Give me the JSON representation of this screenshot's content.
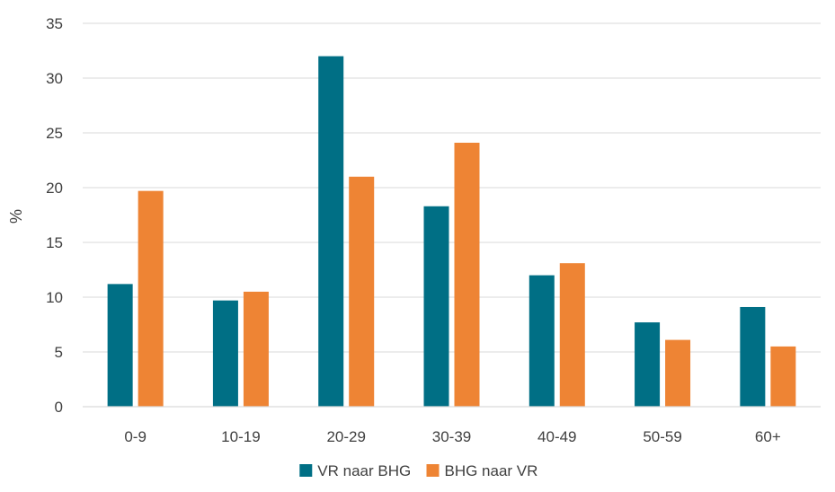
{
  "chart_data": {
    "type": "bar",
    "title": "",
    "xlabel": "",
    "ylabel": "%",
    "ylim": [
      0,
      35
    ],
    "yticks": [
      0,
      5,
      10,
      15,
      20,
      25,
      30,
      35
    ],
    "grid": true,
    "legend_position": "bottom",
    "categories": [
      "0-9",
      "10-19",
      "20-29",
      "30-39",
      "40-49",
      "50-59",
      "60+"
    ],
    "series": [
      {
        "name": "VR naar BHG",
        "color": "#006f85",
        "values": [
          11.2,
          9.7,
          32.0,
          18.3,
          12.0,
          7.7,
          9.1
        ]
      },
      {
        "name": "BHG naar VR",
        "color": "#ee8434",
        "values": [
          19.7,
          10.5,
          21.0,
          24.1,
          13.1,
          6.1,
          5.5
        ]
      }
    ]
  }
}
